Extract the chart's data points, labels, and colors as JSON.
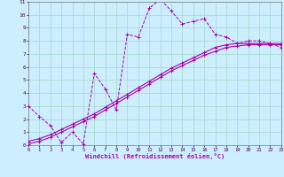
{
  "xlabel": "Windchill (Refroidissement éolien,°C)",
  "bg_color": "#cceeff",
  "grid_color": "#aaddcc",
  "line_color": "#aa00aa",
  "xlim": [
    0,
    23
  ],
  "ylim": [
    0,
    11
  ],
  "xticks": [
    0,
    1,
    2,
    3,
    4,
    5,
    6,
    7,
    8,
    9,
    10,
    11,
    12,
    13,
    14,
    15,
    16,
    17,
    18,
    19,
    20,
    21,
    22,
    23
  ],
  "yticks": [
    0,
    1,
    2,
    3,
    4,
    5,
    6,
    7,
    8,
    9,
    10,
    11
  ],
  "series1_x": [
    0,
    1,
    2,
    3,
    4,
    5,
    6,
    7,
    8,
    9,
    10,
    11,
    12,
    13,
    14,
    15,
    16,
    17,
    18,
    19,
    20,
    21,
    22,
    23
  ],
  "series1_y": [
    3.0,
    2.2,
    1.5,
    0.2,
    1.0,
    0.1,
    5.5,
    4.3,
    2.7,
    8.5,
    8.3,
    10.5,
    11.2,
    10.3,
    9.3,
    9.5,
    9.7,
    8.5,
    8.3,
    7.8,
    8.0,
    8.0,
    7.8,
    7.5
  ],
  "series2_x": [
    0,
    1,
    2,
    3,
    4,
    5,
    6,
    7,
    8,
    9,
    10,
    11,
    12,
    13,
    14,
    15,
    16,
    17,
    18,
    19,
    20,
    21,
    22,
    23
  ],
  "series2_y": [
    0.3,
    0.5,
    0.8,
    1.2,
    1.6,
    2.0,
    2.4,
    2.9,
    3.4,
    3.9,
    4.4,
    4.9,
    5.4,
    5.9,
    6.3,
    6.7,
    7.1,
    7.5,
    7.7,
    7.8,
    7.8,
    7.8,
    7.8,
    7.8
  ],
  "series3_x": [
    0,
    1,
    2,
    3,
    4,
    5,
    6,
    7,
    8,
    9,
    10,
    11,
    12,
    13,
    14,
    15,
    16,
    17,
    18,
    19,
    20,
    21,
    22,
    23
  ],
  "series3_y": [
    0.1,
    0.3,
    0.6,
    1.0,
    1.4,
    1.8,
    2.2,
    2.7,
    3.2,
    3.7,
    4.2,
    4.7,
    5.2,
    5.7,
    6.1,
    6.5,
    6.9,
    7.2,
    7.5,
    7.6,
    7.7,
    7.7,
    7.7,
    7.7
  ]
}
